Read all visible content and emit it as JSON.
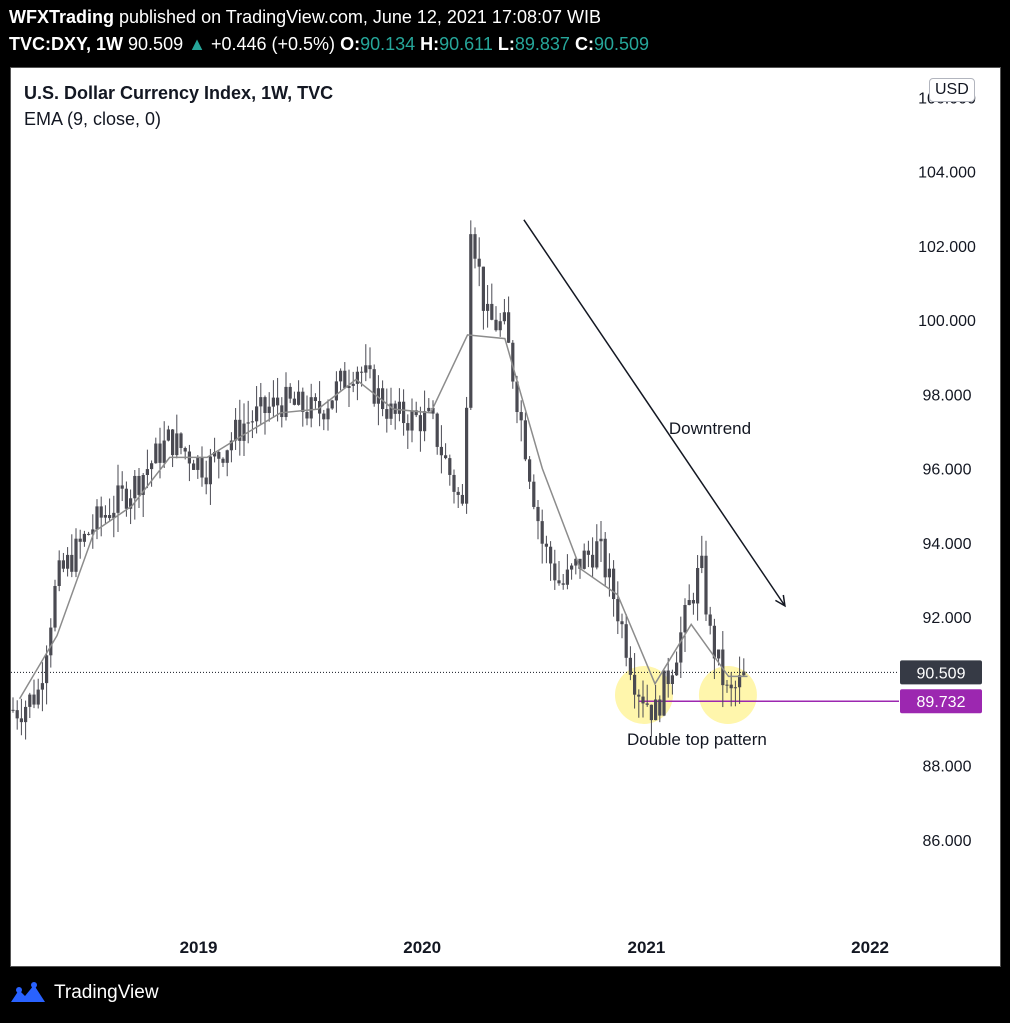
{
  "header": {
    "publisher": "WFXTrading",
    "published_text": " published on TradingView.com, June 12, 2021 17:08:07 WIB",
    "symbol": "TVC:DXY, 1W",
    "last": "90.509",
    "change": "+0.446 (+0.5%)",
    "open_label": "O:",
    "open": "90.134",
    "high_label": "H:",
    "high": "90.611",
    "low_label": "L:",
    "low": "89.837",
    "close_label": "C:",
    "close": "90.509",
    "up_arrow": "▲"
  },
  "chart_title": "U.S. Dollar Currency Index, 1W, TVC",
  "indicator_title": "EMA (9, close, 0)",
  "currency_button": "USD",
  "colors": {
    "candle": "#4a4a52",
    "ema": "#8c8c8c",
    "price_label_bg": "#363a45",
    "support_line": "#9c27b0",
    "highlight": "#fff59d",
    "accent_up": "#26a69a"
  },
  "footer": {
    "brand": "TradingView"
  },
  "chart_data": {
    "type": "line",
    "title": "U.S. Dollar Currency Index, 1W, TVC",
    "series": [
      {
        "name": "EMA (9, close, 0)",
        "x": [
          "2018-03",
          "2018-05",
          "2018-07",
          "2018-09",
          "2018-11",
          "2019-01",
          "2019-03",
          "2019-05",
          "2019-07",
          "2019-09",
          "2019-11",
          "2020-01",
          "2020-03",
          "2020-05",
          "2020-07",
          "2020-09",
          "2020-11",
          "2021-01",
          "2021-03",
          "2021-05",
          "2021-06"
        ],
        "values": [
          89.8,
          91.5,
          94.3,
          95.0,
          96.3,
          96.3,
          96.9,
          97.5,
          97.6,
          98.4,
          97.6,
          97.5,
          99.6,
          99.5,
          96.0,
          93.3,
          92.6,
          90.2,
          91.8,
          90.4,
          90.4
        ]
      }
    ],
    "price_path": {
      "x": [
        "2018-03",
        "2018-04",
        "2018-05",
        "2018-07",
        "2018-09",
        "2018-11",
        "2019-01",
        "2019-03",
        "2019-05",
        "2019-07",
        "2019-09",
        "2019-11",
        "2020-01",
        "2020-03-09",
        "2020-03-20",
        "2020-04",
        "2020-05",
        "2020-07",
        "2020-08",
        "2020-09",
        "2020-10",
        "2020-11",
        "2020-12",
        "2021-01",
        "2021-02",
        "2021-03-31",
        "2021-04",
        "2021-05",
        "2021-06"
      ],
      "values": [
        89.5,
        90.0,
        93.0,
        94.5,
        95.5,
        96.8,
        96.0,
        97.2,
        97.8,
        97.5,
        98.8,
        97.4,
        97.3,
        94.8,
        102.8,
        100.0,
        99.8,
        94.0,
        92.8,
        93.5,
        93.9,
        92.2,
        90.2,
        89.4,
        90.9,
        93.4,
        91.5,
        89.8,
        90.5
      ]
    },
    "ohlc_last": {
      "open": 90.134,
      "high": 90.611,
      "low": 89.837,
      "close": 90.509
    },
    "y_ticks": [
      "86.000",
      "88.000",
      "92.000",
      "94.000",
      "96.000",
      "98.000",
      "100.000",
      "102.000",
      "104.000",
      "106.000"
    ],
    "x_ticks": [
      "2019",
      "2020",
      "2021",
      "2022"
    ],
    "ylim": [
      84.0,
      106.6
    ],
    "xlim": [
      "2018-03-01",
      "2022-08-01"
    ],
    "price_line": {
      "value": 90.509,
      "label": "90.509"
    },
    "support_line": {
      "value": 89.732,
      "label": "89.732"
    },
    "annotations": {
      "trend_text": "Downtrend",
      "pattern_text": "Double top pattern",
      "trend_arrow": {
        "from": [
          "2020-06",
          102.7
        ],
        "to": [
          "2021-08-15",
          92.3
        ]
      },
      "highlight_circles": [
        [
          "2020-12-28",
          89.9
        ],
        [
          "2021-05-14",
          89.9
        ]
      ]
    },
    "grid": false,
    "legend": "top-left"
  }
}
